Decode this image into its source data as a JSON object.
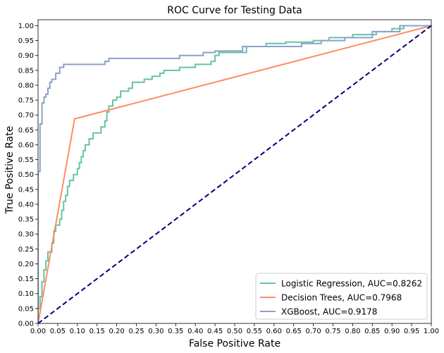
{
  "chart_data": {
    "type": "line",
    "title": "ROC Curve for Testing Data",
    "xlabel": "False Positive Rate",
    "ylabel": "True Positive Rate",
    "xlim": [
      0,
      1
    ],
    "ylim": [
      0,
      1.02
    ],
    "x_ticks": [
      0,
      0.05,
      0.1,
      0.15,
      0.2,
      0.25,
      0.3,
      0.35,
      0.4,
      0.45,
      0.5,
      0.55,
      0.6,
      0.65,
      0.7,
      0.75,
      0.8,
      0.85,
      0.9,
      0.95,
      1.0
    ],
    "y_ticks": [
      0,
      0.05,
      0.1,
      0.15,
      0.2,
      0.25,
      0.3,
      0.35,
      0.4,
      0.45,
      0.5,
      0.55,
      0.6,
      0.65,
      0.7,
      0.75,
      0.8,
      0.85,
      0.9,
      0.95,
      1.0
    ],
    "grid": false,
    "legend_position": "lower-right",
    "series": [
      {
        "name": "Logistic Regression, AUC=0.8262",
        "color": "#66c2a5",
        "step": true,
        "points": [
          [
            0,
            0
          ],
          [
            0,
            0.05
          ],
          [
            0.005,
            0.05
          ],
          [
            0.005,
            0.09
          ],
          [
            0.01,
            0.09
          ],
          [
            0.01,
            0.14
          ],
          [
            0.015,
            0.14
          ],
          [
            0.015,
            0.18
          ],
          [
            0.02,
            0.18
          ],
          [
            0.02,
            0.21
          ],
          [
            0.025,
            0.21
          ],
          [
            0.025,
            0.24
          ],
          [
            0.035,
            0.24
          ],
          [
            0.035,
            0.27
          ],
          [
            0.04,
            0.27
          ],
          [
            0.04,
            0.31
          ],
          [
            0.045,
            0.31
          ],
          [
            0.045,
            0.33
          ],
          [
            0.055,
            0.33
          ],
          [
            0.055,
            0.35
          ],
          [
            0.06,
            0.35
          ],
          [
            0.06,
            0.38
          ],
          [
            0.065,
            0.38
          ],
          [
            0.065,
            0.41
          ],
          [
            0.07,
            0.41
          ],
          [
            0.07,
            0.43
          ],
          [
            0.075,
            0.43
          ],
          [
            0.075,
            0.46
          ],
          [
            0.08,
            0.46
          ],
          [
            0.08,
            0.48
          ],
          [
            0.09,
            0.48
          ],
          [
            0.09,
            0.5
          ],
          [
            0.1,
            0.5
          ],
          [
            0.1,
            0.52
          ],
          [
            0.105,
            0.52
          ],
          [
            0.105,
            0.54
          ],
          [
            0.11,
            0.54
          ],
          [
            0.11,
            0.56
          ],
          [
            0.115,
            0.56
          ],
          [
            0.115,
            0.58
          ],
          [
            0.12,
            0.58
          ],
          [
            0.12,
            0.6
          ],
          [
            0.13,
            0.6
          ],
          [
            0.13,
            0.62
          ],
          [
            0.14,
            0.62
          ],
          [
            0.14,
            0.64
          ],
          [
            0.16,
            0.64
          ],
          [
            0.16,
            0.66
          ],
          [
            0.17,
            0.66
          ],
          [
            0.17,
            0.68
          ],
          [
            0.175,
            0.68
          ],
          [
            0.175,
            0.71
          ],
          [
            0.18,
            0.71
          ],
          [
            0.18,
            0.73
          ],
          [
            0.19,
            0.73
          ],
          [
            0.19,
            0.75
          ],
          [
            0.2,
            0.75
          ],
          [
            0.2,
            0.76
          ],
          [
            0.21,
            0.76
          ],
          [
            0.21,
            0.78
          ],
          [
            0.23,
            0.78
          ],
          [
            0.23,
            0.79
          ],
          [
            0.24,
            0.79
          ],
          [
            0.24,
            0.81
          ],
          [
            0.27,
            0.81
          ],
          [
            0.27,
            0.82
          ],
          [
            0.29,
            0.82
          ],
          [
            0.29,
            0.83
          ],
          [
            0.31,
            0.83
          ],
          [
            0.31,
            0.84
          ],
          [
            0.32,
            0.84
          ],
          [
            0.32,
            0.85
          ],
          [
            0.36,
            0.85
          ],
          [
            0.36,
            0.86
          ],
          [
            0.4,
            0.86
          ],
          [
            0.4,
            0.87
          ],
          [
            0.44,
            0.87
          ],
          [
            0.44,
            0.88
          ],
          [
            0.45,
            0.88
          ],
          [
            0.45,
            0.9
          ],
          [
            0.46,
            0.9
          ],
          [
            0.46,
            0.91
          ],
          [
            0.53,
            0.91
          ],
          [
            0.53,
            0.93
          ],
          [
            0.58,
            0.93
          ],
          [
            0.58,
            0.94
          ],
          [
            0.63,
            0.94
          ],
          [
            0.63,
            0.945
          ],
          [
            0.7,
            0.945
          ],
          [
            0.7,
            0.95
          ],
          [
            0.74,
            0.95
          ],
          [
            0.74,
            0.96
          ],
          [
            0.8,
            0.96
          ],
          [
            0.8,
            0.97
          ],
          [
            0.86,
            0.97
          ],
          [
            0.86,
            0.98
          ],
          [
            0.9,
            0.98
          ],
          [
            0.9,
            0.99
          ],
          [
            0.93,
            0.99
          ],
          [
            0.93,
            1.0
          ],
          [
            1.0,
            1.0
          ]
        ]
      },
      {
        "name": "Decision Trees, AUC=0.7968",
        "color": "#fc8d62",
        "step": false,
        "points": [
          [
            0,
            0
          ],
          [
            0.093,
            0.687
          ],
          [
            1.0,
            1.0
          ]
        ]
      },
      {
        "name": "XGBoost, AUC=0.9178",
        "color": "#8da0cb",
        "step": true,
        "points": [
          [
            0,
            0
          ],
          [
            0,
            0.51
          ],
          [
            0.005,
            0.51
          ],
          [
            0.005,
            0.67
          ],
          [
            0.01,
            0.67
          ],
          [
            0.01,
            0.74
          ],
          [
            0.015,
            0.74
          ],
          [
            0.015,
            0.76
          ],
          [
            0.02,
            0.76
          ],
          [
            0.02,
            0.77
          ],
          [
            0.025,
            0.77
          ],
          [
            0.025,
            0.79
          ],
          [
            0.03,
            0.79
          ],
          [
            0.03,
            0.81
          ],
          [
            0.035,
            0.81
          ],
          [
            0.035,
            0.82
          ],
          [
            0.045,
            0.82
          ],
          [
            0.045,
            0.84
          ],
          [
            0.055,
            0.84
          ],
          [
            0.055,
            0.86
          ],
          [
            0.065,
            0.86
          ],
          [
            0.065,
            0.87
          ],
          [
            0.17,
            0.87
          ],
          [
            0.17,
            0.88
          ],
          [
            0.18,
            0.88
          ],
          [
            0.18,
            0.89
          ],
          [
            0.36,
            0.89
          ],
          [
            0.36,
            0.9
          ],
          [
            0.42,
            0.9
          ],
          [
            0.42,
            0.91
          ],
          [
            0.45,
            0.91
          ],
          [
            0.45,
            0.915
          ],
          [
            0.52,
            0.915
          ],
          [
            0.52,
            0.93
          ],
          [
            0.67,
            0.93
          ],
          [
            0.67,
            0.94
          ],
          [
            0.72,
            0.94
          ],
          [
            0.72,
            0.95
          ],
          [
            0.78,
            0.95
          ],
          [
            0.78,
            0.96
          ],
          [
            0.85,
            0.96
          ],
          [
            0.85,
            0.98
          ],
          [
            0.92,
            0.98
          ],
          [
            0.92,
            1.0
          ],
          [
            1.0,
            1.0
          ]
        ]
      },
      {
        "name": "",
        "color": "#000080",
        "dashed": true,
        "step": false,
        "points": [
          [
            0,
            0
          ],
          [
            1,
            1
          ]
        ]
      }
    ]
  }
}
